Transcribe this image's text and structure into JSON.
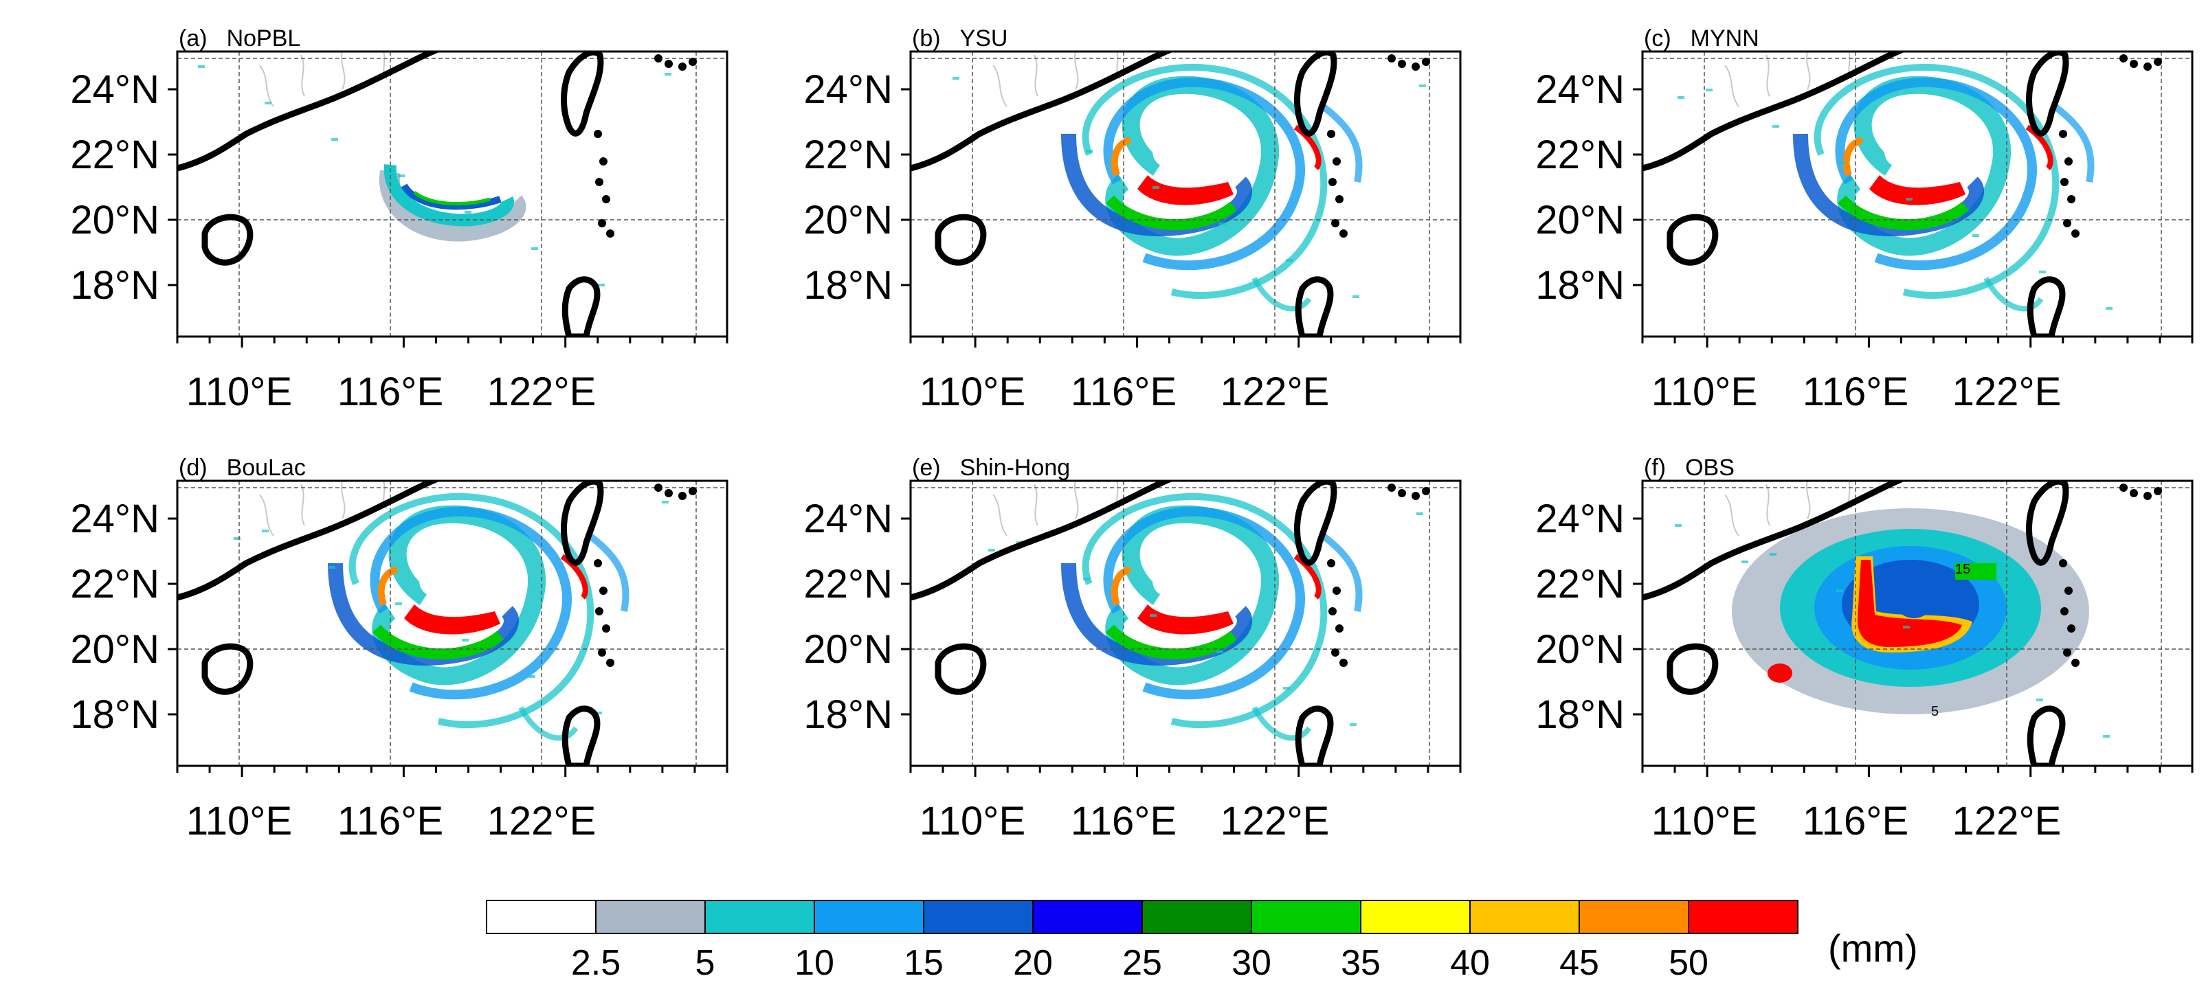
{
  "figure": {
    "panels": [
      {
        "tag": "(a)",
        "name": "NoPBL",
        "storm": "nopbl"
      },
      {
        "tag": "(b)",
        "name": "YSU",
        "storm": "model"
      },
      {
        "tag": "(c)",
        "name": "MYNN",
        "storm": "model"
      },
      {
        "tag": "(d)",
        "name": "BouLac",
        "storm": "model"
      },
      {
        "tag": "(e)",
        "name": "Shin-Hong",
        "storm": "model"
      },
      {
        "tag": "(f)",
        "name": "OBS",
        "storm": "obs"
      }
    ],
    "lat_labels": [
      "24°N",
      "22°N",
      "20°N",
      "18°N"
    ],
    "lon_labels": [
      "110°E",
      "116°E",
      "122°E"
    ],
    "obs_contour_labels": [
      "15",
      "5"
    ],
    "colorbar": {
      "labels": [
        "2.5",
        "5",
        "10",
        "15",
        "20",
        "25",
        "30",
        "35",
        "40",
        "45",
        "50"
      ],
      "colors": [
        "#ffffff",
        "#a9b7c6",
        "#17c6c9",
        "#109cf0",
        "#0a5ccf",
        "#0b00f5",
        "#008a00",
        "#00cc00",
        "#ffff00",
        "#ffc400",
        "#ff8a00",
        "#ff0000"
      ],
      "unit": "(mm)"
    }
  }
}
